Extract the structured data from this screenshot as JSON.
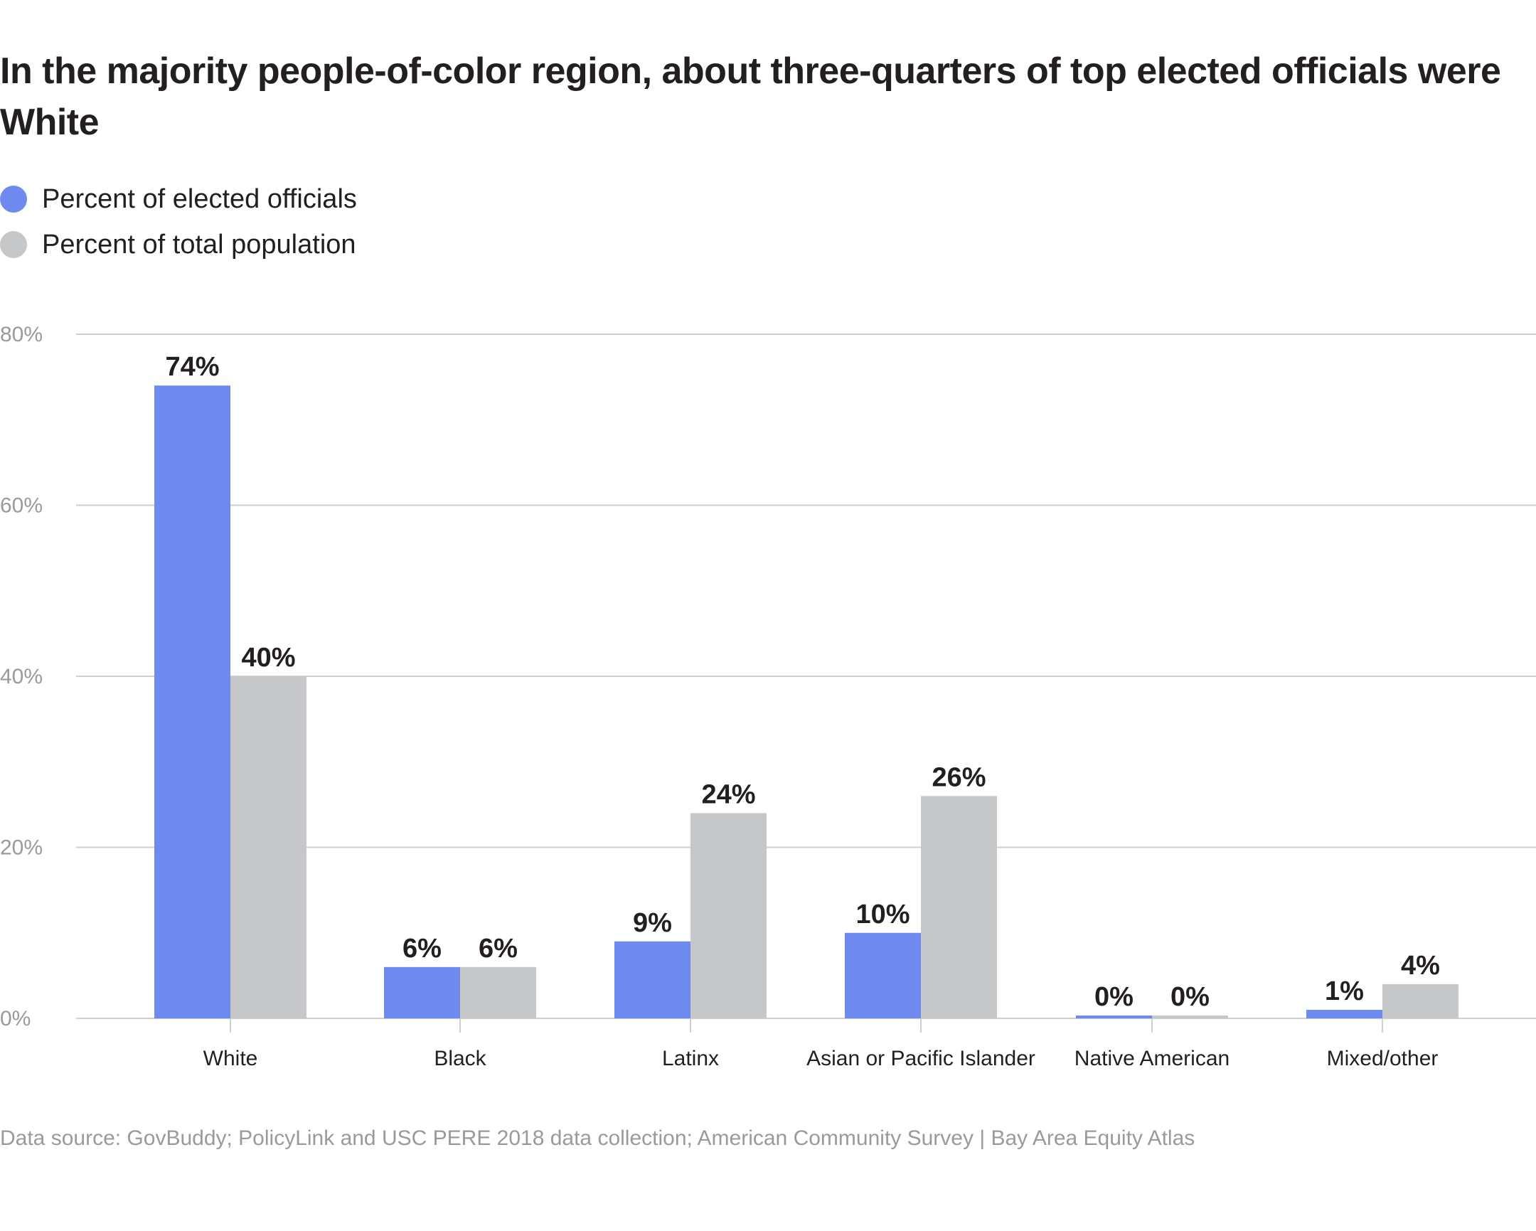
{
  "chart_data": {
    "type": "bar",
    "title": "In the majority people-of-color region, about three-quarters of top elected officials were White",
    "categories": [
      "White",
      "Black",
      "Latinx",
      "Asian or Pacific Islander",
      "Native American",
      "Mixed/other"
    ],
    "series": [
      {
        "name": "Percent of elected officials",
        "values": [
          74,
          6,
          9,
          10,
          0,
          1
        ],
        "labels": [
          "74%",
          "6%",
          "9%",
          "10%",
          "0%",
          "1%"
        ],
        "color": "#6e8aef"
      },
      {
        "name": "Percent of total population",
        "values": [
          40,
          6,
          24,
          26,
          0,
          4
        ],
        "labels": [
          "40%",
          "6%",
          "24%",
          "26%",
          "0%",
          "4%"
        ],
        "color": "#c6c7c9"
      }
    ],
    "ylim": [
      0,
      80
    ],
    "yticks": [
      0,
      20,
      40,
      60,
      80
    ],
    "ytick_labels": [
      "0%",
      "20%",
      "40%",
      "60%",
      "80%"
    ],
    "grid": true,
    "legend_position": "top-left",
    "xlabel": "",
    "ylabel": "",
    "source": "Data source: GovBuddy; PolicyLink and USC PERE 2018 data collection; American Community Survey | Bay Area Equity Atlas"
  }
}
